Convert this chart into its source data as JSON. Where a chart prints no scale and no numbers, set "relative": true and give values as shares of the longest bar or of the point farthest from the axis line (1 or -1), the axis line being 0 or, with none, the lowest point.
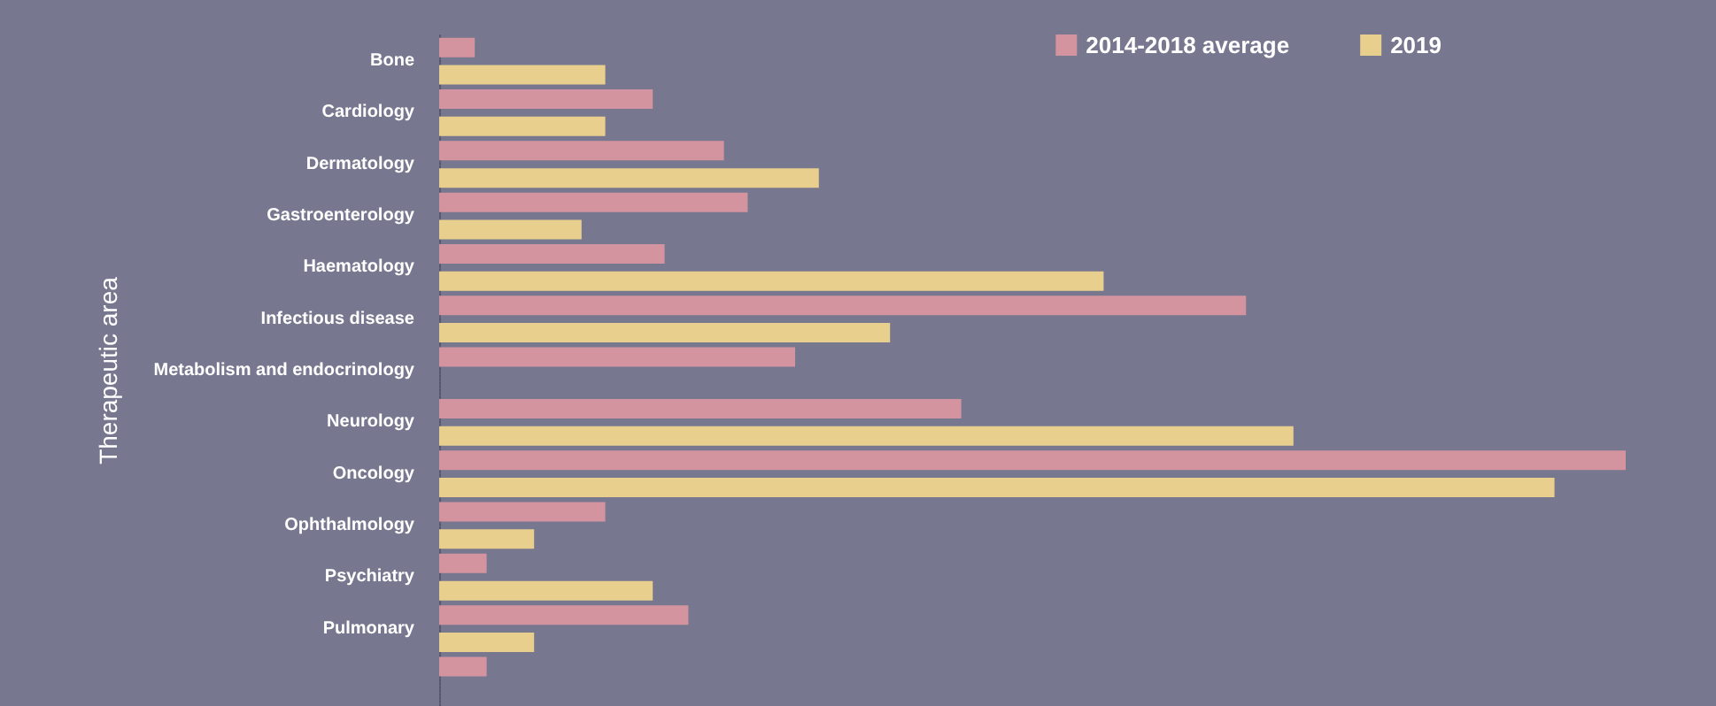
{
  "chart_data": {
    "type": "bar",
    "orientation": "horizontal",
    "relative": true,
    "ylabel": "Therapeutic area",
    "legend": "top right",
    "categories": [
      "Bone",
      "Cardiology",
      "Dermatology",
      "Gastroenterology",
      "Haematology",
      "Infectious disease",
      "Metabolism and endocrinology",
      "Neurology",
      "Oncology",
      "Ophthalmology",
      "Psychiatry",
      "Pulmonary",
      null
    ],
    "series": [
      {
        "name": "2014-2018 average",
        "color": "#d4949f",
        "values": [
          0.03,
          0.18,
          0.24,
          0.26,
          0.19,
          0.68,
          0.3,
          0.44,
          1,
          0.14,
          0.04,
          0.21,
          0.04
        ]
      },
      {
        "name": "2019",
        "color": "#e8cf8e",
        "values": [
          0.14,
          0.14,
          0.32,
          0.12,
          0.56,
          0.38,
          null,
          0.72,
          0.94,
          0.08,
          0.18,
          0.08,
          null
        ]
      }
    ]
  }
}
